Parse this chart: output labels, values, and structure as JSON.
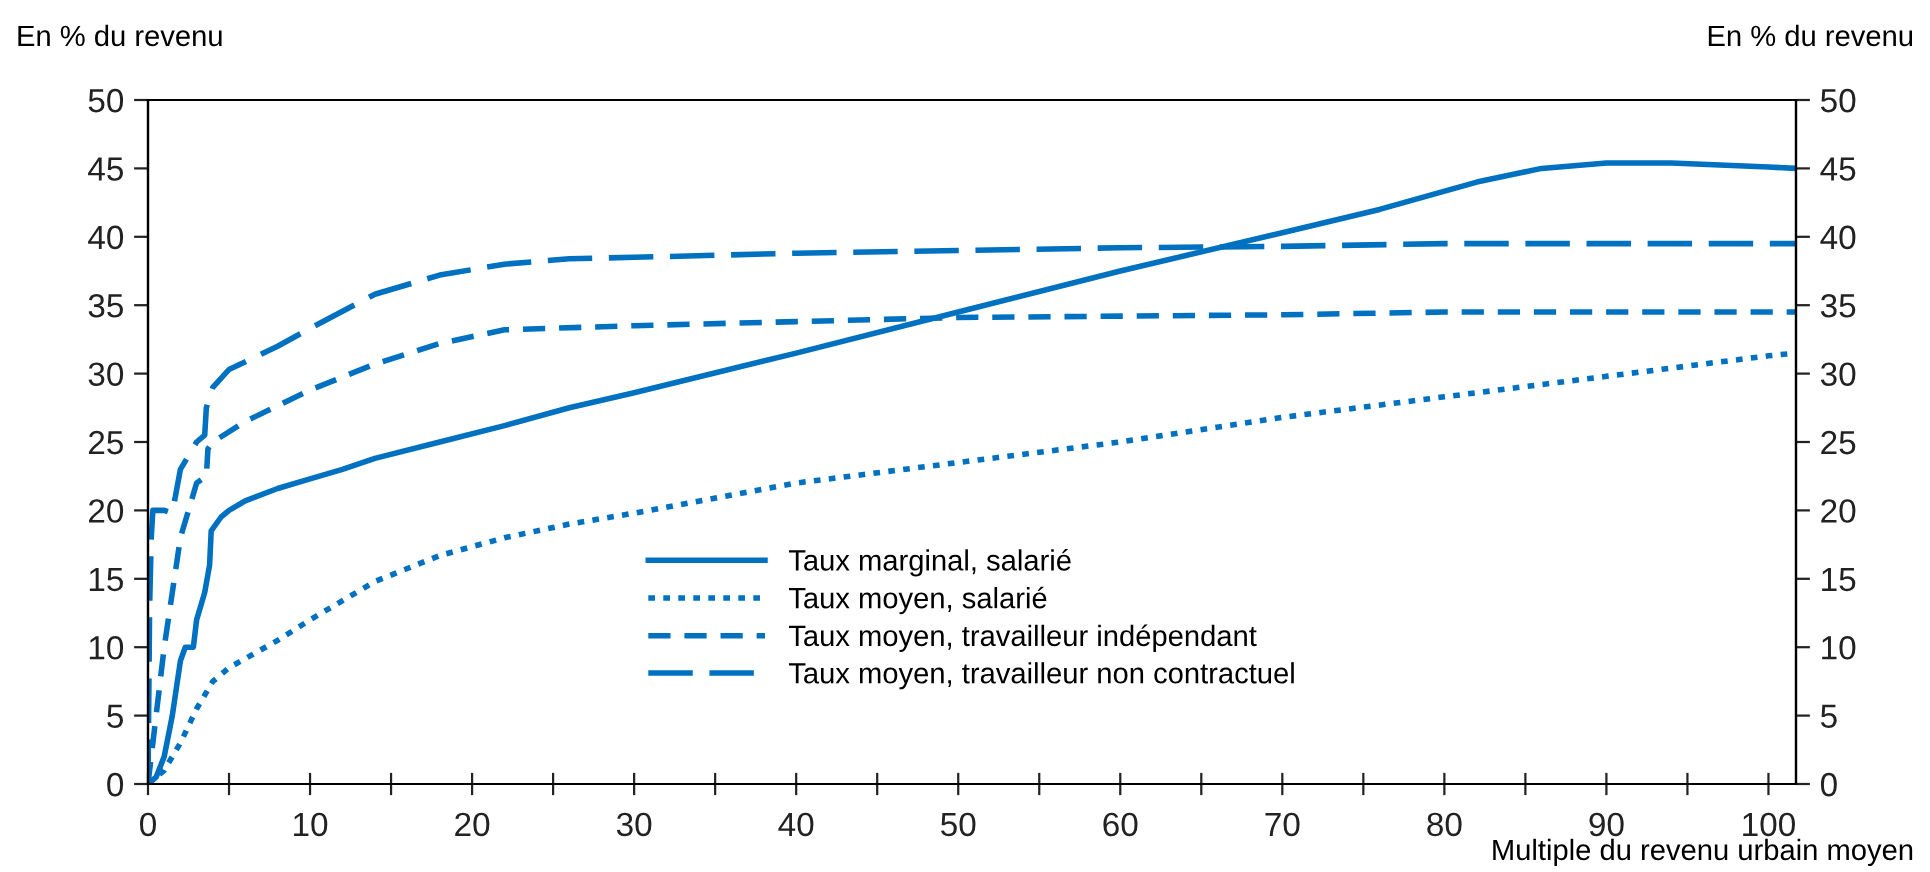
{
  "chart_data": {
    "type": "line",
    "ylabel": "En % du revenu",
    "y2label": "En % du revenu",
    "xlabel": "Multiple du revenu urbain moyen",
    "xlim": [
      0,
      101.7
    ],
    "xticks": [
      0,
      {
        "value": 5,
        "label": null
      },
      10,
      {
        "value": 15,
        "label": null
      },
      20,
      {
        "value": 25,
        "label": null
      },
      30,
      {
        "value": 35,
        "label": null
      },
      40,
      {
        "value": 45,
        "label": null
      },
      50,
      {
        "value": 55,
        "label": null
      },
      60,
      {
        "value": 65,
        "label": null
      },
      70,
      {
        "value": 75,
        "label": null
      },
      80,
      {
        "value": 85,
        "label": null
      },
      90,
      {
        "value": 95,
        "label": null
      },
      100
    ],
    "ylim": [
      0,
      50
    ],
    "yticks": [
      0,
      5,
      10,
      15,
      20,
      25,
      30,
      35,
      40,
      45,
      50
    ],
    "y2lim": [
      0,
      50
    ],
    "y2ticks": [
      0,
      5,
      10,
      15,
      20,
      25,
      30,
      35,
      40,
      45,
      50
    ],
    "grid": false,
    "legend": "bottom",
    "marker": "none",
    "series": [
      {
        "name": "Taux marginal, salarié",
        "color": "#0070c0",
        "line_style": "solid",
        "x": [
          0,
          0.5,
          1,
          1.5,
          2,
          2.3,
          2.8,
          3,
          3.5,
          3.8,
          3.9,
          4.5,
          5,
          6,
          8,
          10,
          12,
          14,
          18,
          22,
          26,
          30,
          40,
          50,
          60,
          70,
          76,
          82,
          86,
          90,
          94,
          100,
          101.7
        ],
        "values": [
          0,
          0.5,
          2,
          5,
          9,
          10,
          10,
          12,
          14,
          16,
          18.5,
          19.5,
          20,
          20.7,
          21.6,
          22.3,
          23,
          23.8,
          25,
          26.2,
          27.5,
          28.6,
          31.5,
          34.5,
          37.5,
          40.3,
          42,
          44,
          45,
          45.4,
          45.4,
          45.1,
          45
        ]
      },
      {
        "name": "Taux moyen, salarié",
        "color": "#0070c0",
        "line_style": "dotted",
        "x": [
          0,
          1,
          2,
          3,
          4,
          5,
          8,
          10,
          14,
          18,
          22,
          26,
          30,
          40,
          50,
          60,
          70,
          80,
          90,
          100,
          101.7
        ],
        "values": [
          0,
          1,
          3,
          5.5,
          7.5,
          8.5,
          10.5,
          12,
          14.8,
          16.7,
          18,
          19,
          19.8,
          22,
          23.5,
          25,
          26.8,
          28.3,
          29.8,
          31.3,
          31.5
        ]
      },
      {
        "name": "Taux moyen, travailleur indépendant",
        "color": "#0070c0",
        "line_style": "dashed",
        "x": [
          0,
          0.5,
          1,
          1.5,
          2,
          2.5,
          3,
          3.6,
          3.7,
          4,
          6,
          10,
          14,
          18,
          22,
          30,
          40,
          50,
          60,
          70,
          80,
          100,
          101.7
        ],
        "values": [
          0,
          5,
          10,
          14,
          18,
          20,
          22,
          22.5,
          24.5,
          25,
          26.5,
          28.8,
          30.7,
          32.2,
          33.2,
          33.5,
          33.8,
          34.1,
          34.2,
          34.3,
          34.5,
          34.5,
          34.5
        ]
      },
      {
        "name": "Taux moyen, travailleur non contractuel",
        "color": "#0070c0",
        "line_style": "dashed",
        "x": [
          0,
          0.1,
          0.2,
          0.3,
          1,
          1.5,
          2,
          2.5,
          3,
          3.5,
          3.6,
          4,
          5,
          8,
          10,
          14,
          18,
          22,
          26,
          30,
          40,
          50,
          60,
          70,
          80,
          100,
          101.7
        ],
        "values": [
          0,
          13,
          18,
          20,
          20,
          19.8,
          23,
          24,
          25,
          25.5,
          27.5,
          29,
          30.3,
          32,
          33.3,
          35.8,
          37.2,
          38,
          38.4,
          38.5,
          38.8,
          39,
          39.2,
          39.3,
          39.5,
          39.5,
          39.5
        ]
      }
    ]
  }
}
